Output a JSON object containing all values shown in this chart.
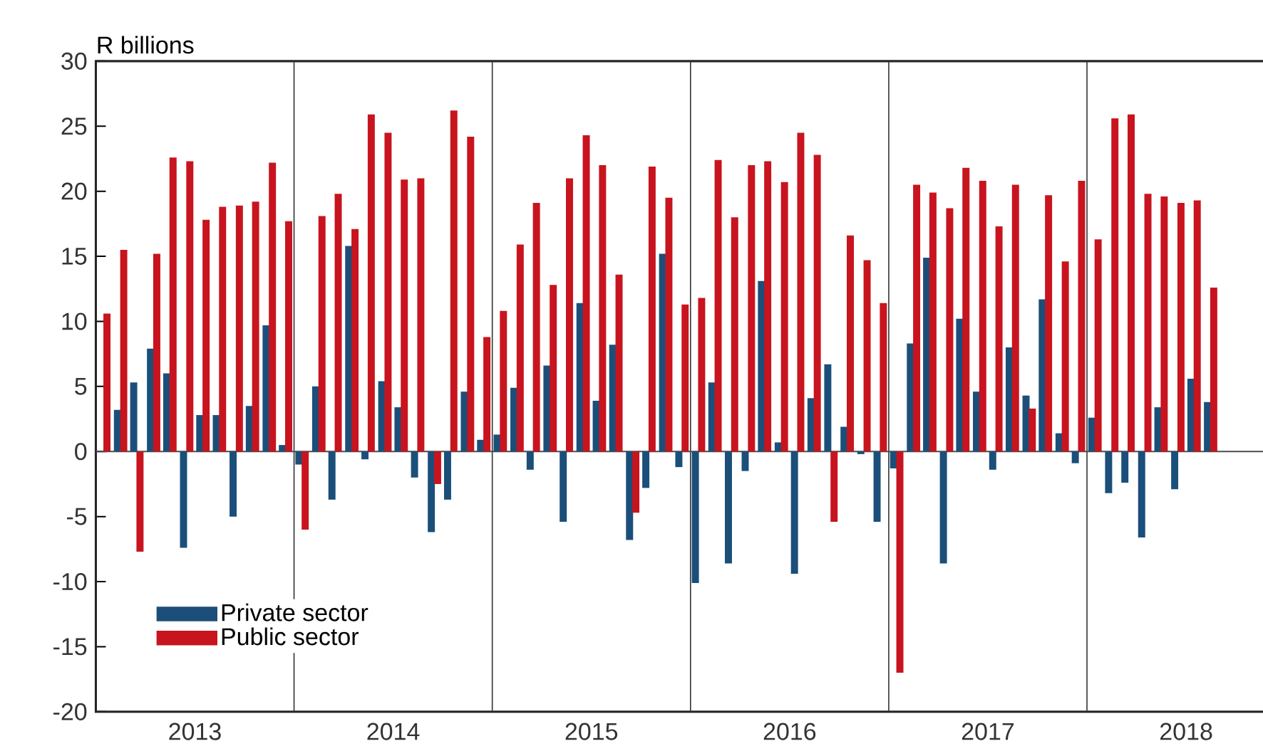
{
  "chart_data": {
    "type": "bar",
    "ylabel": "R billions",
    "x": [
      "2013-01-16",
      "2013-02-15",
      "2013-03-16",
      "2013-04-16",
      "2013-05-16",
      "2013-06-16",
      "2013-07-16",
      "2013-08-16",
      "2013-09-16",
      "2013-10-16",
      "2013-11-16",
      "2013-12-16",
      "2014-01-16",
      "2014-02-15",
      "2014-03-16",
      "2014-04-16",
      "2014-05-16",
      "2014-06-16",
      "2014-07-16",
      "2014-08-16",
      "2014-09-16",
      "2014-10-16",
      "2014-11-16",
      "2014-12-16",
      "2015-01-16",
      "2015-02-15",
      "2015-03-16",
      "2015-04-16",
      "2015-05-16",
      "2015-06-16",
      "2015-07-16",
      "2015-08-16",
      "2015-09-16",
      "2015-10-16",
      "2015-11-16",
      "2015-12-16",
      "2016-01-16",
      "2016-02-15",
      "2016-03-16",
      "2016-04-16",
      "2016-05-16",
      "2016-06-16",
      "2016-07-16",
      "2016-08-16",
      "2016-09-16",
      "2016-10-16",
      "2016-11-16",
      "2016-12-16",
      "2017-01-16",
      "2017-02-15",
      "2017-03-16",
      "2017-04-16",
      "2017-05-16",
      "2017-06-16",
      "2017-07-16",
      "2017-08-16",
      "2017-09-16",
      "2017-10-16",
      "2017-11-16",
      "2017-12-16",
      "2018-01-16",
      "2018-02-15",
      "2018-03-16",
      "2018-04-16",
      "2018-05-16",
      "2018-06-16",
      "2018-07-16",
      "2018-08-16"
    ],
    "series": [
      {
        "name": "Private sector",
        "color": "#1b4f7a",
        "values": [
          null,
          3.2,
          5.3,
          7.9,
          6.0,
          -7.4,
          2.8,
          2.8,
          -5.0,
          3.5,
          9.7,
          0.5,
          -1.0,
          5.0,
          -3.7,
          15.8,
          -0.6,
          5.4,
          3.4,
          -2.0,
          -6.2,
          -3.7,
          4.6,
          0.9,
          1.3,
          4.9,
          -1.4,
          6.6,
          -5.4,
          11.4,
          3.9,
          8.2,
          -6.8,
          -2.8,
          15.2,
          -1.2,
          -10.1,
          5.3,
          -8.6,
          -1.5,
          13.1,
          0.7,
          -9.4,
          4.1,
          6.7,
          1.9,
          -0.2,
          -5.4,
          -1.3,
          8.3,
          14.9,
          -8.6,
          10.2,
          4.6,
          -1.4,
          8.0,
          4.3,
          11.7,
          1.4,
          -0.9,
          2.6,
          -3.2,
          -2.4,
          -6.6,
          3.4,
          -2.9,
          5.6,
          3.8
        ]
      },
      {
        "name": "Public sector",
        "color": "#c8141e",
        "values": [
          10.6,
          15.5,
          -7.7,
          15.2,
          22.6,
          22.3,
          17.8,
          18.8,
          18.9,
          19.2,
          22.2,
          17.7,
          -6.0,
          18.1,
          19.8,
          17.1,
          25.9,
          24.5,
          20.9,
          21.0,
          -2.5,
          26.2,
          24.2,
          8.8,
          10.8,
          15.9,
          19.1,
          12.8,
          21.0,
          24.3,
          22.0,
          13.6,
          -4.7,
          21.9,
          19.5,
          11.3,
          11.8,
          22.4,
          18.0,
          22.0,
          22.3,
          20.7,
          24.5,
          22.8,
          -5.4,
          16.6,
          14.7,
          11.4,
          -17.0,
          20.5,
          19.9,
          18.7,
          21.8,
          20.8,
          17.3,
          20.5,
          3.3,
          19.7,
          14.6,
          20.8,
          16.3,
          25.6,
          25.9,
          19.8,
          19.6,
          19.1,
          19.3,
          12.6
        ]
      }
    ],
    "xlim": [
      "2013-01-01",
      "2018-12-15"
    ],
    "xticks": [
      {
        "value": "2013-07-01",
        "label": "2013"
      },
      {
        "value": "2014-07-01",
        "label": "2014"
      },
      {
        "value": "2015-07-01",
        "label": "2015"
      },
      {
        "value": "2016-07-01",
        "label": "2016"
      },
      {
        "value": "2017-07-01",
        "label": "2017"
      },
      {
        "value": "2018-07-01",
        "label": "2018"
      }
    ],
    "ylim": [
      -20,
      30
    ],
    "yticks": [
      -20,
      -15,
      -10,
      -5,
      0,
      5,
      10,
      15,
      20,
      25,
      30
    ],
    "ref_lines": [
      {
        "axis": "x",
        "value": "2014-01-01",
        "color": "#333333"
      },
      {
        "axis": "x",
        "value": "2015-01-01",
        "color": "#333333"
      },
      {
        "axis": "x",
        "value": "2016-01-01",
        "color": "#333333"
      },
      {
        "axis": "x",
        "value": "2017-01-01",
        "color": "#333333"
      },
      {
        "axis": "x",
        "value": "2018-01-01",
        "color": "#333333"
      }
    ],
    "legend": "bottom left"
  }
}
